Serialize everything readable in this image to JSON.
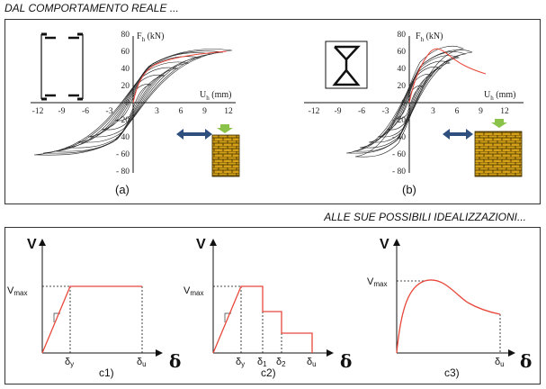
{
  "headings": {
    "top": "DAL COMPORTAMENTO REALE ...",
    "middle": "ALLE SUE POSSIBILI IDEALIZZAZIONI..."
  },
  "panel_a": {
    "label": "(a)",
    "y_axis_label": "F",
    "y_axis_sub": "h",
    "y_axis_unit": " (kN)",
    "x_axis_label": "U",
    "x_axis_sub": "h",
    "x_axis_unit": " (mm)",
    "x_ticks": [
      "-12",
      "-9",
      "-6",
      "-3",
      "3",
      "6",
      "9",
      "12"
    ],
    "y_ticks": [
      "80",
      "60",
      "40",
      "20",
      "0",
      "- 20",
      "- 40",
      "- 60",
      "- 80"
    ]
  },
  "panel_b": {
    "label": "(b)",
    "y_axis_label": "F",
    "y_axis_sub": "h",
    "y_axis_unit": " (kN)",
    "x_axis_label": "U",
    "x_axis_sub": "h",
    "x_axis_unit": " (mm)",
    "x_ticks": [
      "-12",
      "-9",
      "-6",
      "-3",
      "3",
      "6",
      "9",
      "12"
    ],
    "y_ticks": [
      "80",
      "60",
      "40",
      "20",
      "0",
      "- 20",
      "- 40",
      "- 60",
      "- 80"
    ]
  },
  "ideal": {
    "c1": {
      "label": "c1)",
      "V": "V",
      "Vmax": "V",
      "Vmax_sub": "max",
      "dy": "δ",
      "dy_sub": "y",
      "du": "δ",
      "du_sub": "u",
      "delta": "δ"
    },
    "c2": {
      "label": "c2)",
      "V": "V",
      "Vmax": "V",
      "Vmax_sub": "max",
      "dy": "δ",
      "dy_sub": "y",
      "d1": "δ",
      "d1_sub": "1",
      "d2": "δ",
      "d2_sub": "2",
      "du": "δ",
      "du_sub": "u",
      "delta": "δ"
    },
    "c3": {
      "label": "c3)",
      "V": "V",
      "Vmax": "V",
      "Vmax_sub": "max",
      "du": "δ",
      "du_sub": "u",
      "delta": "δ"
    }
  },
  "colors": {
    "curve": "#e8483c",
    "hysteresis": "#222222",
    "masonry": "#d4a017",
    "arrow": "#2f4f7f",
    "load": "#8bc34a"
  }
}
